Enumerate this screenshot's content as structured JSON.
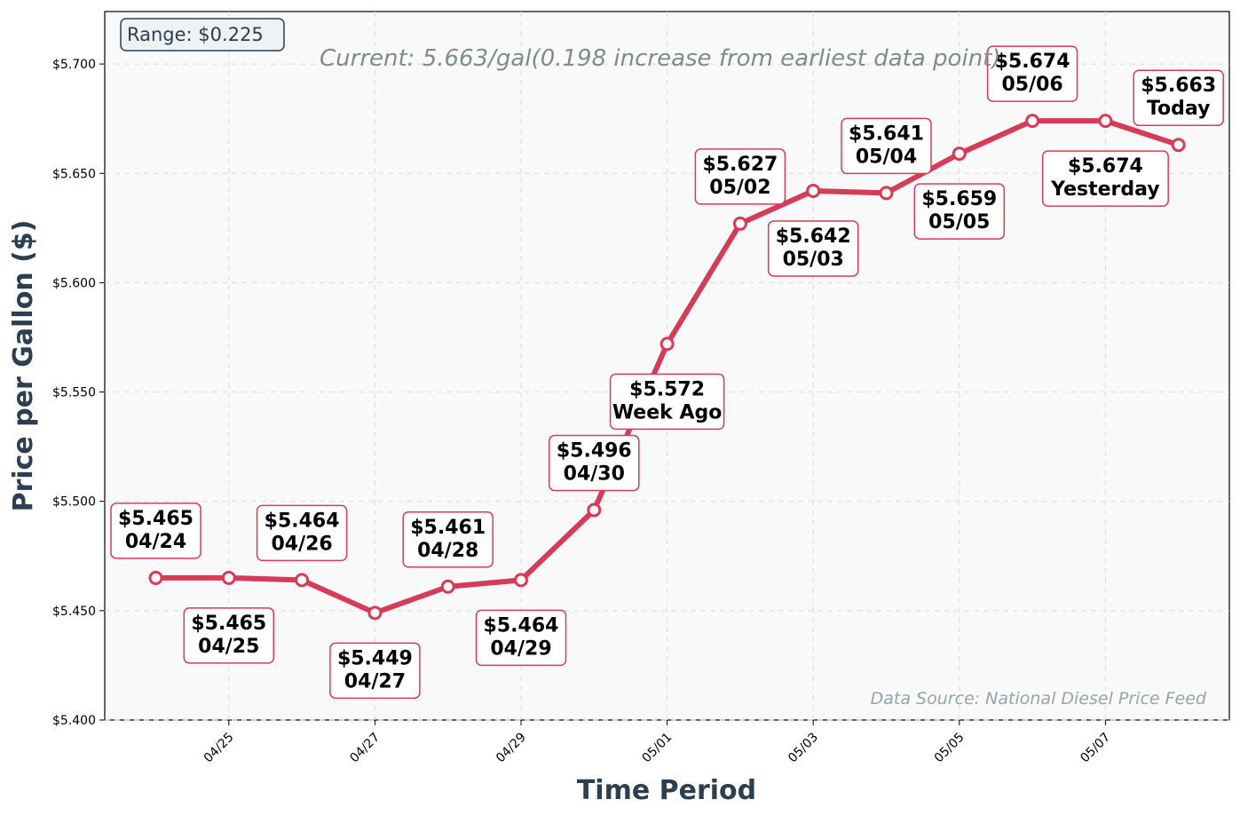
{
  "chart_data": {
    "type": "line",
    "title": "",
    "xlabel": "Time Period",
    "ylabel": "Price per Gallon ($)",
    "ylim": [
      5.4,
      5.724
    ],
    "y_ticks": [
      5.4,
      5.45,
      5.5,
      5.55,
      5.6,
      5.65,
      5.7
    ],
    "y_tick_labels": [
      "$5.400",
      "$5.450",
      "$5.500",
      "$5.550",
      "$5.600",
      "$5.650",
      "$5.700"
    ],
    "x_ticks": [
      "04/25",
      "04/27",
      "04/29",
      "05/01",
      "05/03",
      "05/05",
      "05/07"
    ],
    "x_tick_days": [
      1,
      3,
      5,
      7,
      9,
      11,
      13
    ],
    "grid": true,
    "series_color": "#d63c57",
    "points": [
      {
        "day": 0,
        "value": 5.465,
        "price_label": "$5.465",
        "date_label": "04/24",
        "side": "above"
      },
      {
        "day": 1,
        "value": 5.465,
        "price_label": "$5.465",
        "date_label": "04/25",
        "side": "below"
      },
      {
        "day": 2,
        "value": 5.464,
        "price_label": "$5.464",
        "date_label": "04/26",
        "side": "above"
      },
      {
        "day": 3,
        "value": 5.449,
        "price_label": "$5.449",
        "date_label": "04/27",
        "side": "below"
      },
      {
        "day": 4,
        "value": 5.461,
        "price_label": "$5.461",
        "date_label": "04/28",
        "side": "above"
      },
      {
        "day": 5,
        "value": 5.464,
        "price_label": "$5.464",
        "date_label": "04/29",
        "side": "below"
      },
      {
        "day": 6,
        "value": 5.496,
        "price_label": "$5.496",
        "date_label": "04/30",
        "side": "above"
      },
      {
        "day": 7,
        "value": 5.572,
        "price_label": "$5.572",
        "date_label": "Week Ago",
        "side": "below"
      },
      {
        "day": 8,
        "value": 5.627,
        "price_label": "$5.627",
        "date_label": "05/02",
        "side": "above"
      },
      {
        "day": 9,
        "value": 5.642,
        "price_label": "$5.642",
        "date_label": "05/03",
        "side": "below"
      },
      {
        "day": 10,
        "value": 5.641,
        "price_label": "$5.641",
        "date_label": "05/04",
        "side": "above"
      },
      {
        "day": 11,
        "value": 5.659,
        "price_label": "$5.659",
        "date_label": "05/05",
        "side": "below"
      },
      {
        "day": 12,
        "value": 5.674,
        "price_label": "$5.674",
        "date_label": "05/06",
        "side": "above"
      },
      {
        "day": 13,
        "value": 5.674,
        "price_label": "$5.674",
        "date_label": "Yesterday",
        "side": "below"
      },
      {
        "day": 14,
        "value": 5.663,
        "price_label": "$5.663",
        "date_label": "Today",
        "side": "above"
      }
    ],
    "current_annotation": "Current: 5.663/gal(0.198 increase from earliest data point)",
    "range_annotation": "Range: $0.225",
    "source_annotation": "Data Source: National Diesel Price Feed"
  }
}
